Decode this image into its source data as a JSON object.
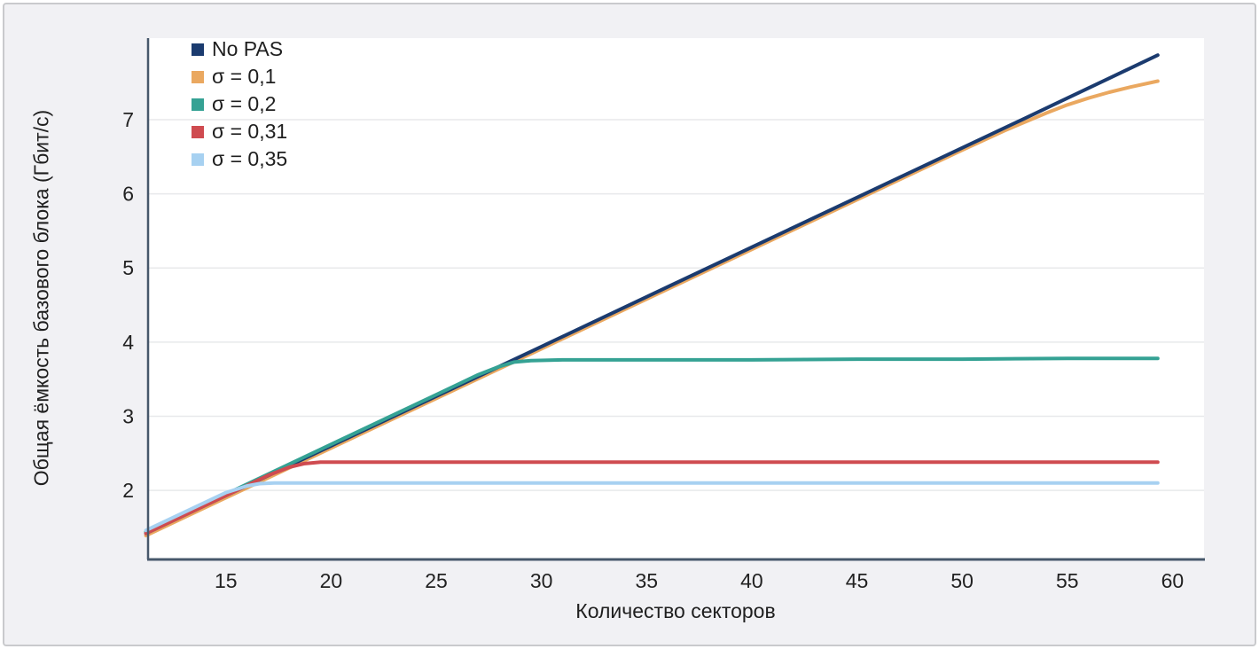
{
  "style": {
    "figure_bg": "#f1f1f4",
    "plot_bg": "#ffffff",
    "grid_color": "#e8e9eb",
    "spine_color": "#47586b",
    "text_color": "#222222",
    "border_color": "#c9cacd"
  },
  "chart_data": {
    "type": "line",
    "title": "",
    "xlabel": "Количество секторов",
    "ylabel": "Общая ёмкость базового блока (Гбит/с)",
    "x_domain": [
      11.3,
      61.5
    ],
    "y_domain": [
      1.08,
      8.1
    ],
    "x_ticks": [
      15,
      20,
      25,
      30,
      35,
      40,
      45,
      50,
      55,
      60
    ],
    "y_ticks": [
      2,
      3,
      4,
      5,
      6,
      7
    ],
    "grid": "horizontal",
    "legend_position": "top-left",
    "series": [
      {
        "name": "No PAS",
        "color": "#1b3b6f",
        "z": 2,
        "x": [
          11.2,
          15,
          20,
          25,
          30,
          35,
          40,
          45,
          50,
          53,
          55,
          57,
          59.3
        ],
        "y": [
          1.42,
          1.93,
          2.6,
          3.27,
          3.94,
          4.61,
          5.28,
          5.95,
          6.62,
          7.02,
          7.29,
          7.56,
          7.87
        ]
      },
      {
        "name": "σ = 0,1",
        "color": "#eaa860",
        "z": 1,
        "x": [
          11.2,
          15,
          20,
          25,
          30,
          35,
          40,
          45,
          50,
          52,
          54,
          55,
          56,
          57,
          58,
          59.3
        ],
        "y": [
          1.39,
          1.9,
          2.57,
          3.24,
          3.91,
          4.58,
          5.25,
          5.92,
          6.59,
          6.85,
          7.09,
          7.2,
          7.29,
          7.37,
          7.44,
          7.52
        ]
      },
      {
        "name": "σ = 0,2",
        "color": "#35a294",
        "z": 3,
        "x": [
          11.2,
          15,
          20,
          25,
          27,
          28,
          28.7,
          29.5,
          31,
          35,
          40,
          45,
          50,
          55,
          59.3
        ],
        "y": [
          1.44,
          1.95,
          2.62,
          3.29,
          3.56,
          3.67,
          3.73,
          3.75,
          3.76,
          3.76,
          3.76,
          3.77,
          3.77,
          3.78,
          3.78
        ]
      },
      {
        "name": "σ = 0,31",
        "color": "#cf4b50",
        "z": 4,
        "x": [
          11.2,
          15,
          17,
          18,
          18.7,
          19.5,
          21,
          25,
          30,
          35,
          40,
          45,
          50,
          55,
          59.3
        ],
        "y": [
          1.42,
          1.93,
          2.2,
          2.31,
          2.36,
          2.38,
          2.38,
          2.38,
          2.38,
          2.38,
          2.38,
          2.38,
          2.38,
          2.38,
          2.38
        ]
      },
      {
        "name": "σ = 0,35",
        "color": "#a7d1f1",
        "z": 5,
        "x": [
          11.2,
          15,
          16,
          16.6,
          17.3,
          18.5,
          20,
          25,
          30,
          35,
          40,
          45,
          50,
          55,
          59.3
        ],
        "y": [
          1.46,
          1.97,
          2.06,
          2.09,
          2.1,
          2.1,
          2.1,
          2.1,
          2.1,
          2.1,
          2.1,
          2.1,
          2.1,
          2.1,
          2.1
        ]
      }
    ]
  }
}
